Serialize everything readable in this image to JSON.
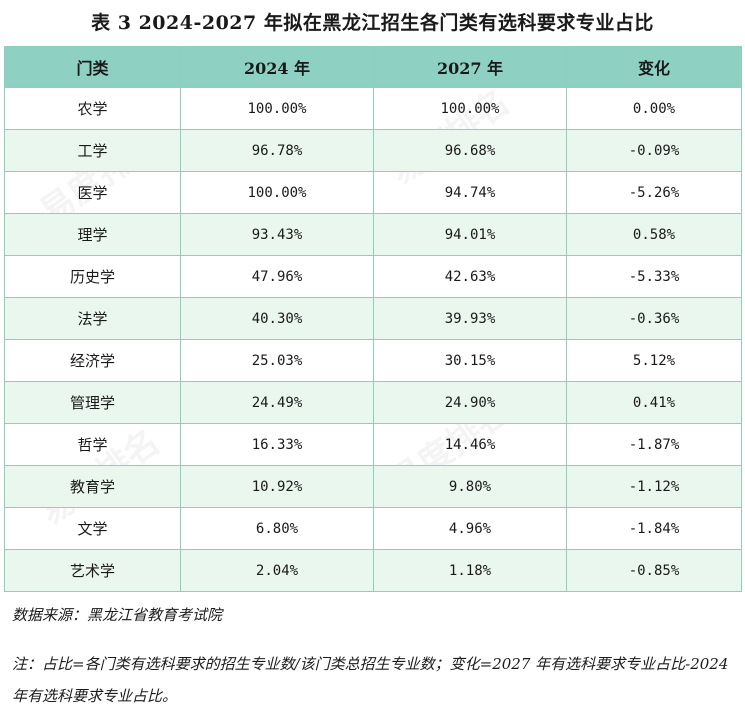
{
  "title": "表 3 2024-2027 年拟在黑龙江招生各门类有选科要求专业占比",
  "headers": [
    "门类",
    "2024 年",
    "2027 年",
    "变化"
  ],
  "rows": [
    {
      "category": "农学",
      "y2024": "100.00%",
      "y2027": "100.00%",
      "change": "0.00%"
    },
    {
      "category": "工学",
      "y2024": "96.78%",
      "y2027": "96.68%",
      "change": "-0.09%"
    },
    {
      "category": "医学",
      "y2024": "100.00%",
      "y2027": "94.74%",
      "change": "-5.26%"
    },
    {
      "category": "理学",
      "y2024": "93.43%",
      "y2027": "94.01%",
      "change": "0.58%"
    },
    {
      "category": "历史学",
      "y2024": "47.96%",
      "y2027": "42.63%",
      "change": "-5.33%"
    },
    {
      "category": "法学",
      "y2024": "40.30%",
      "y2027": "39.93%",
      "change": "-0.36%"
    },
    {
      "category": "经济学",
      "y2024": "25.03%",
      "y2027": "30.15%",
      "change": "5.12%"
    },
    {
      "category": "管理学",
      "y2024": "24.49%",
      "y2027": "24.90%",
      "change": "0.41%"
    },
    {
      "category": "哲学",
      "y2024": "16.33%",
      "y2027": "14.46%",
      "change": "-1.87%"
    },
    {
      "category": "教育学",
      "y2024": "10.92%",
      "y2027": "9.80%",
      "change": "-1.12%"
    },
    {
      "category": "文学",
      "y2024": "6.80%",
      "y2027": "4.96%",
      "change": "-1.84%"
    },
    {
      "category": "艺术学",
      "y2024": "2.04%",
      "y2027": "1.18%",
      "change": "-0.85%"
    }
  ],
  "source": "数据来源：黑龙江省教育考试院",
  "note": "注：占比=各门类有选科要求的招生专业数/该门类总招生专业数；变化=2027 年有选科要求专业占比-2024 年有选科要求专业占比。",
  "watermark": "易度排名"
}
